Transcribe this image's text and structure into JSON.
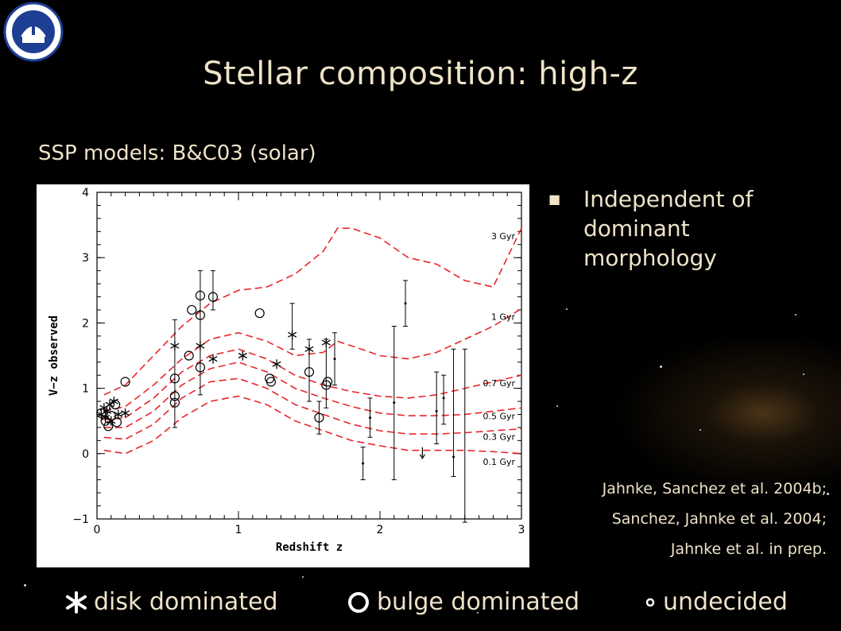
{
  "slide": {
    "title": "Stellar composition: high-z",
    "subtitle": "SSP models: B&C03 (solar)",
    "bullet": "Independent of dominant morphology",
    "references": [
      "Jahnke, Sanchez et al. 2004b;",
      "Sanchez, Jahnke et al. 2004;",
      "Jahnke et al. in prep."
    ],
    "legend": [
      {
        "label": "disk dominated",
        "icon": "asterisk-icon"
      },
      {
        "label": "bulge dominated",
        "icon": "circle-icon"
      },
      {
        "label": "undecided",
        "icon": "dot-icon"
      }
    ],
    "logo": "institute-seal-logo"
  },
  "chart_data": {
    "type": "scatter",
    "xlabel": "Redshift z",
    "ylabel": "V−z observed",
    "xlim": [
      0,
      3
    ],
    "ylim": [
      -1,
      4
    ],
    "xticks": [
      0,
      1,
      2,
      3
    ],
    "yticks": [
      -1,
      0,
      1,
      2,
      3,
      4
    ],
    "model_color": "#e8262a",
    "models": [
      {
        "name": "0.1 Gyr",
        "points": [
          [
            0.05,
            0.05
          ],
          [
            0.2,
            0.0
          ],
          [
            0.4,
            0.2
          ],
          [
            0.6,
            0.55
          ],
          [
            0.8,
            0.8
          ],
          [
            1.0,
            0.88
          ],
          [
            1.2,
            0.75
          ],
          [
            1.4,
            0.5
          ],
          [
            1.6,
            0.35
          ],
          [
            1.8,
            0.2
          ],
          [
            2.0,
            0.12
          ],
          [
            2.2,
            0.05
          ],
          [
            2.4,
            0.05
          ],
          [
            2.6,
            0.05
          ],
          [
            2.8,
            0.03
          ],
          [
            3.0,
            0.0
          ]
        ]
      },
      {
        "name": "0.3 Gyr",
        "points": [
          [
            0.05,
            0.25
          ],
          [
            0.2,
            0.22
          ],
          [
            0.4,
            0.45
          ],
          [
            0.6,
            0.85
          ],
          [
            0.8,
            1.1
          ],
          [
            1.0,
            1.15
          ],
          [
            1.2,
            1.0
          ],
          [
            1.4,
            0.75
          ],
          [
            1.6,
            0.6
          ],
          [
            1.8,
            0.45
          ],
          [
            2.0,
            0.35
          ],
          [
            2.2,
            0.3
          ],
          [
            2.4,
            0.3
          ],
          [
            2.6,
            0.32
          ],
          [
            2.8,
            0.35
          ],
          [
            3.0,
            0.38
          ]
        ]
      },
      {
        "name": "0.5 Gyr",
        "points": [
          [
            0.05,
            0.4
          ],
          [
            0.2,
            0.4
          ],
          [
            0.4,
            0.65
          ],
          [
            0.6,
            1.05
          ],
          [
            0.8,
            1.3
          ],
          [
            1.0,
            1.4
          ],
          [
            1.2,
            1.25
          ],
          [
            1.4,
            1.0
          ],
          [
            1.6,
            0.85
          ],
          [
            1.8,
            0.72
          ],
          [
            2.0,
            0.62
          ],
          [
            2.2,
            0.58
          ],
          [
            2.4,
            0.58
          ],
          [
            2.6,
            0.6
          ],
          [
            2.8,
            0.65
          ],
          [
            3.0,
            0.7
          ]
        ]
      },
      {
        "name": "0.7 Gyr",
        "points": [
          [
            0.05,
            0.52
          ],
          [
            0.2,
            0.55
          ],
          [
            0.4,
            0.85
          ],
          [
            0.6,
            1.25
          ],
          [
            0.8,
            1.5
          ],
          [
            1.0,
            1.6
          ],
          [
            1.2,
            1.45
          ],
          [
            1.4,
            1.2
          ],
          [
            1.6,
            1.05
          ],
          [
            1.8,
            0.95
          ],
          [
            2.0,
            0.88
          ],
          [
            2.2,
            0.85
          ],
          [
            2.4,
            0.9
          ],
          [
            2.6,
            1.0
          ],
          [
            2.8,
            1.1
          ],
          [
            3.0,
            1.2
          ]
        ]
      },
      {
        "name": "1 Gyr",
        "points": [
          [
            0.05,
            0.65
          ],
          [
            0.2,
            0.72
          ],
          [
            0.4,
            1.05
          ],
          [
            0.6,
            1.45
          ],
          [
            0.8,
            1.75
          ],
          [
            1.0,
            1.85
          ],
          [
            1.2,
            1.72
          ],
          [
            1.4,
            1.5
          ],
          [
            1.6,
            1.55
          ],
          [
            1.7,
            1.72
          ],
          [
            1.8,
            1.65
          ],
          [
            2.0,
            1.5
          ],
          [
            2.2,
            1.45
          ],
          [
            2.4,
            1.55
          ],
          [
            2.6,
            1.75
          ],
          [
            2.8,
            1.95
          ],
          [
            3.0,
            2.22
          ]
        ]
      },
      {
        "name": "3 Gyr",
        "points": [
          [
            0.05,
            0.9
          ],
          [
            0.2,
            1.05
          ],
          [
            0.4,
            1.5
          ],
          [
            0.6,
            1.95
          ],
          [
            0.8,
            2.3
          ],
          [
            1.0,
            2.5
          ],
          [
            1.2,
            2.55
          ],
          [
            1.4,
            2.75
          ],
          [
            1.6,
            3.1
          ],
          [
            1.7,
            3.45
          ],
          [
            1.8,
            3.45
          ],
          [
            2.0,
            3.3
          ],
          [
            2.2,
            3.0
          ],
          [
            2.4,
            2.9
          ],
          [
            2.6,
            2.65
          ],
          [
            2.8,
            2.55
          ],
          [
            3.0,
            3.45
          ]
        ]
      }
    ],
    "disk_dominated": [
      {
        "x": 0.03,
        "y": 0.6
      },
      {
        "x": 0.05,
        "y": 0.7
      },
      {
        "x": 0.07,
        "y": 0.65
      },
      {
        "x": 0.09,
        "y": 0.75
      },
      {
        "x": 0.12,
        "y": 0.8
      },
      {
        "x": 0.15,
        "y": 0.6
      },
      {
        "x": 0.06,
        "y": 0.55
      },
      {
        "x": 0.1,
        "y": 0.5
      },
      {
        "x": 0.2,
        "y": 0.62
      },
      {
        "x": 0.55,
        "y": 1.65
      },
      {
        "x": 0.73,
        "y": 1.65
      },
      {
        "x": 0.82,
        "y": 1.45
      },
      {
        "x": 1.03,
        "y": 1.5
      },
      {
        "x": 1.27,
        "y": 1.37
      },
      {
        "x": 1.38,
        "y": 1.82
      },
      {
        "x": 1.5,
        "y": 1.6
      },
      {
        "x": 1.62,
        "y": 1.7
      }
    ],
    "bulge_dominated": [
      {
        "x": 0.03,
        "y": 0.62
      },
      {
        "x": 0.06,
        "y": 0.5
      },
      {
        "x": 0.08,
        "y": 0.42
      },
      {
        "x": 0.1,
        "y": 0.58
      },
      {
        "x": 0.13,
        "y": 0.75
      },
      {
        "x": 0.14,
        "y": 0.48
      },
      {
        "x": 0.2,
        "y": 1.1
      },
      {
        "x": 0.55,
        "y": 1.15
      },
      {
        "x": 0.55,
        "y": 0.88
      },
      {
        "x": 0.55,
        "y": 0.78
      },
      {
        "x": 0.65,
        "y": 1.5
      },
      {
        "x": 0.67,
        "y": 2.2
      },
      {
        "x": 0.73,
        "y": 2.42
      },
      {
        "x": 0.73,
        "y": 2.12
      },
      {
        "x": 0.73,
        "y": 1.32
      },
      {
        "x": 0.82,
        "y": 2.4
      },
      {
        "x": 1.15,
        "y": 2.15
      },
      {
        "x": 1.22,
        "y": 1.15
      },
      {
        "x": 1.23,
        "y": 1.1
      },
      {
        "x": 1.5,
        "y": 1.25
      },
      {
        "x": 1.57,
        "y": 0.55
      },
      {
        "x": 1.62,
        "y": 1.05
      },
      {
        "x": 1.63,
        "y": 1.1
      }
    ],
    "undecided": [
      {
        "x": 1.68,
        "y": 1.45
      },
      {
        "x": 1.88,
        "y": -0.15
      },
      {
        "x": 1.93,
        "y": 0.55
      },
      {
        "x": 2.1,
        "y": 0.78
      },
      {
        "x": 2.18,
        "y": 2.3
      },
      {
        "x": 2.4,
        "y": 0.65
      },
      {
        "x": 2.45,
        "y": 0.85
      },
      {
        "x": 2.52,
        "y": -0.05
      }
    ],
    "errorbars": [
      {
        "x": 0.55,
        "lo": 0.4,
        "hi": 2.05
      },
      {
        "x": 0.73,
        "lo": 0.9,
        "hi": 2.8
      },
      {
        "x": 0.82,
        "lo": 2.2,
        "hi": 2.8
      },
      {
        "x": 1.38,
        "lo": 1.6,
        "hi": 2.3
      },
      {
        "x": 1.5,
        "lo": 0.8,
        "hi": 1.75
      },
      {
        "x": 1.57,
        "lo": 0.3,
        "hi": 0.8
      },
      {
        "x": 1.62,
        "lo": 0.7,
        "hi": 1.75
      },
      {
        "x": 1.68,
        "lo": 1.05,
        "hi": 1.85
      },
      {
        "x": 1.88,
        "lo": -0.4,
        "hi": 0.1
      },
      {
        "x": 1.93,
        "lo": 0.25,
        "hi": 0.85
      },
      {
        "x": 2.1,
        "lo": -0.4,
        "hi": 1.95
      },
      {
        "x": 2.18,
        "lo": 1.95,
        "hi": 2.65
      },
      {
        "x": 2.4,
        "lo": 0.15,
        "hi": 1.25
      },
      {
        "x": 2.45,
        "lo": 0.45,
        "hi": 1.2
      },
      {
        "x": 2.52,
        "lo": -0.35,
        "hi": 1.6
      },
      {
        "x": 2.6,
        "lo": -1.05,
        "hi": 1.6
      }
    ],
    "upper_limits": [
      {
        "x": 2.3,
        "y": 0.0
      }
    ],
    "grid": false
  }
}
